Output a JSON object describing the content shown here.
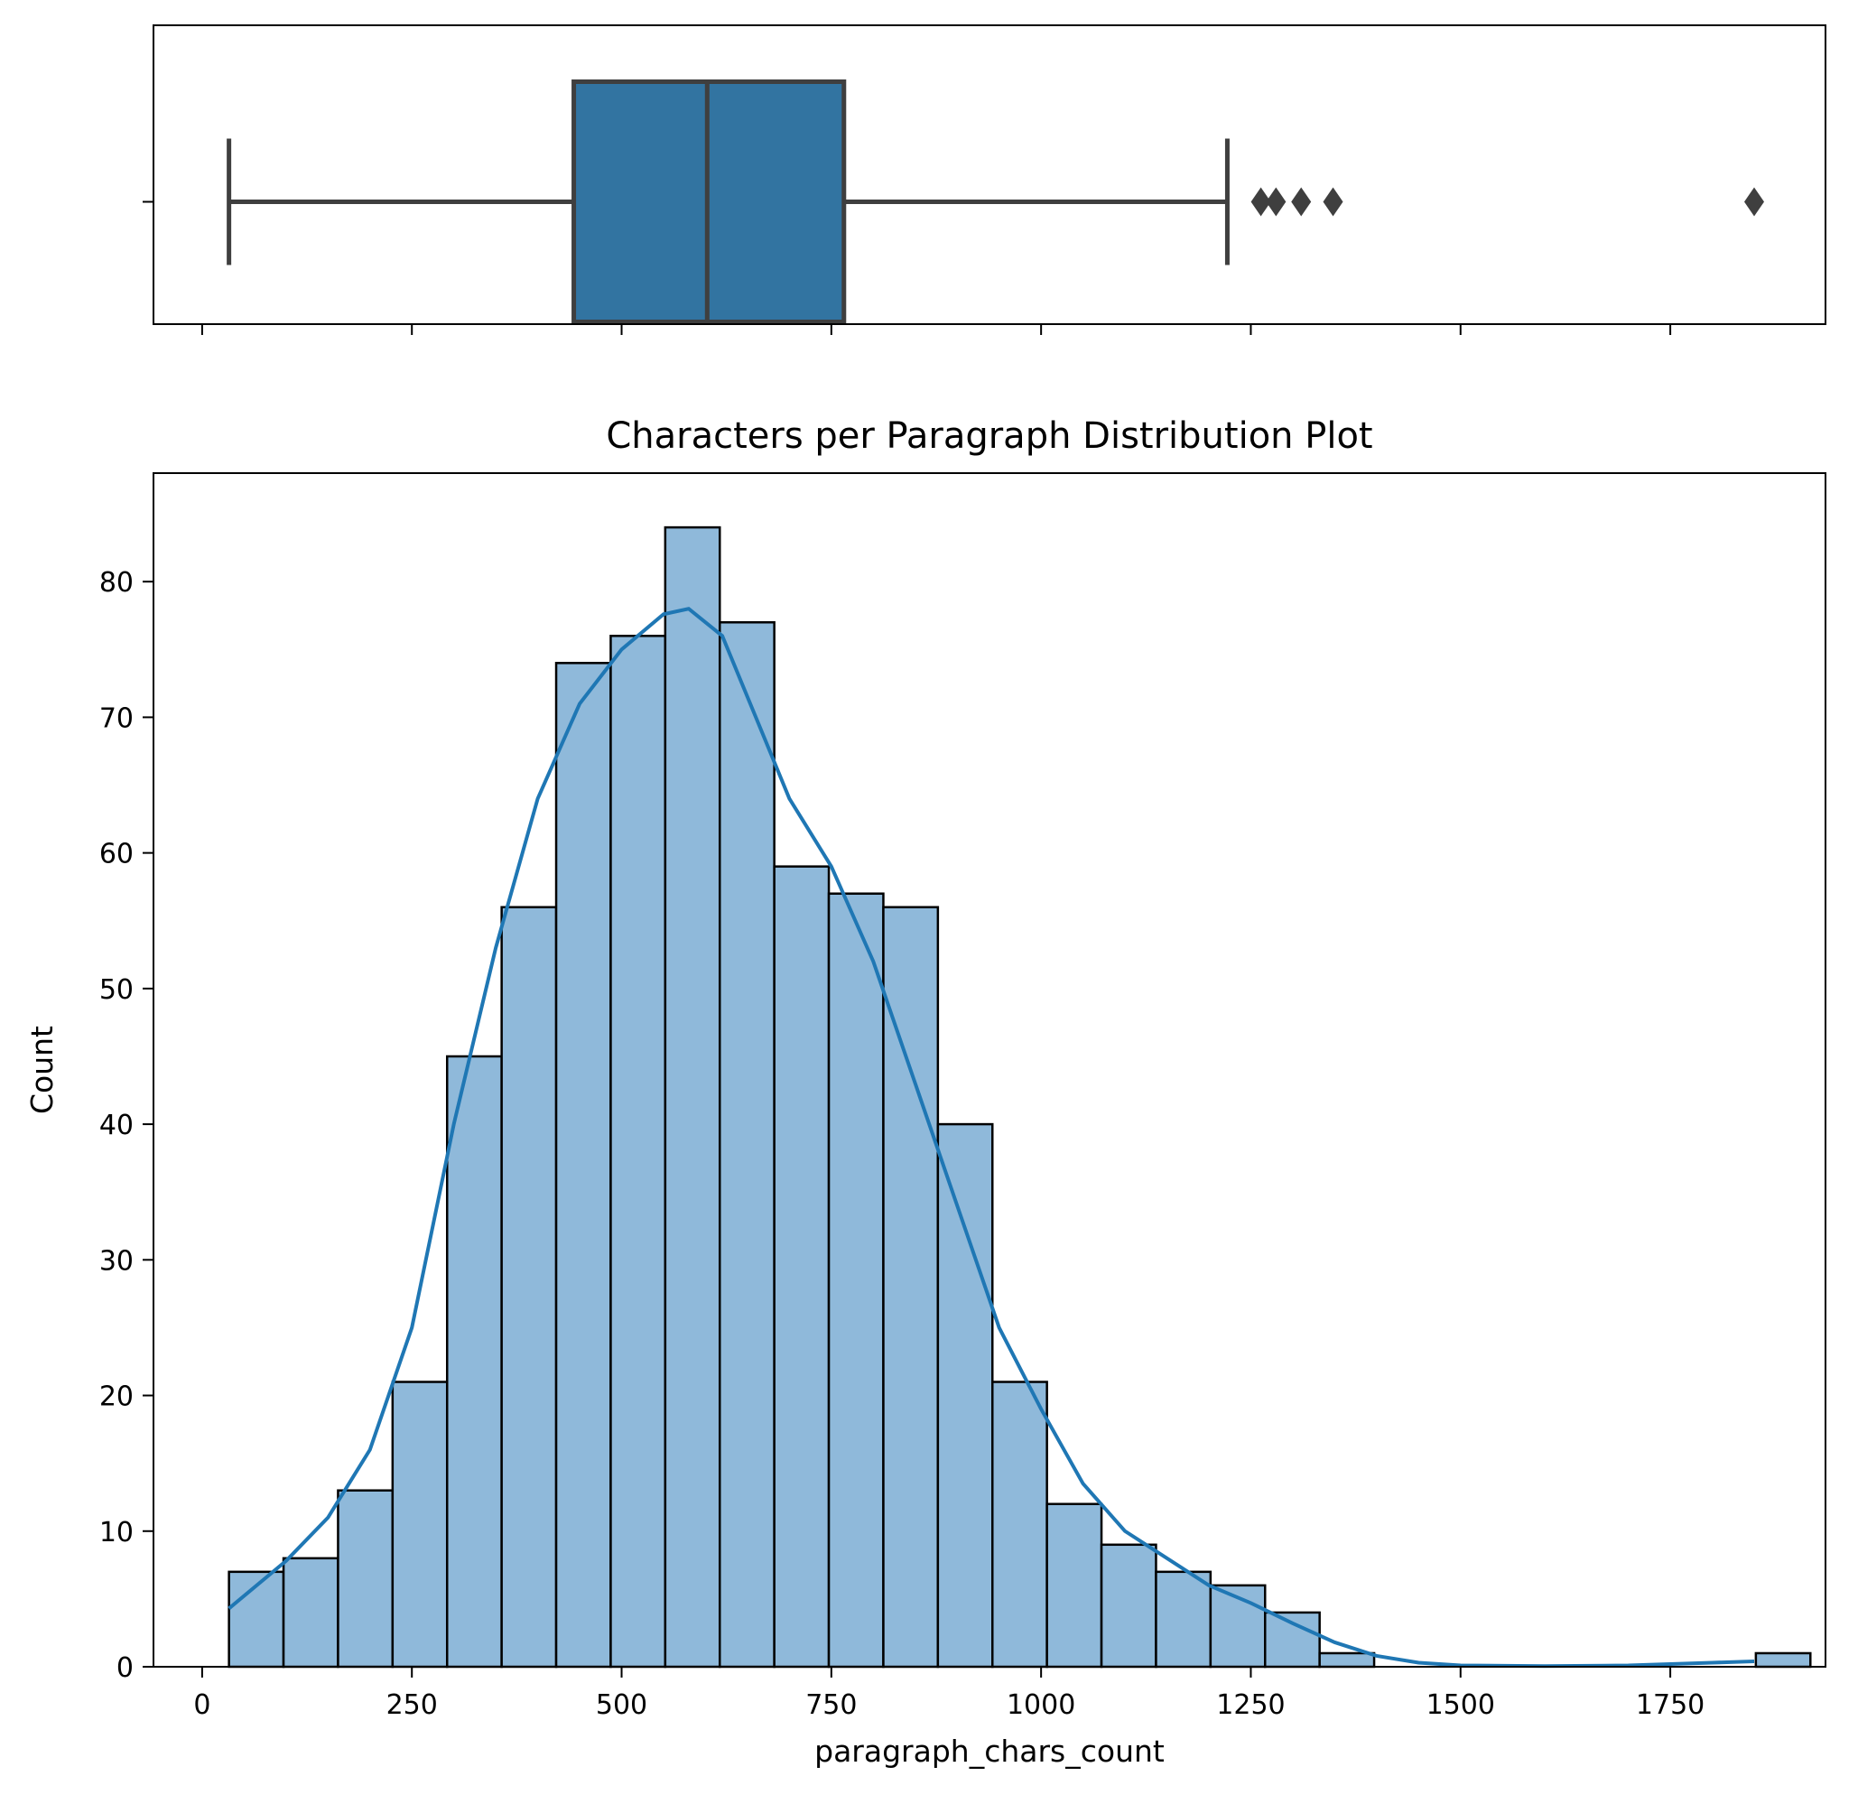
{
  "chart_data": [
    {
      "type": "box",
      "xlim": [
        -58,
        1935
      ],
      "x_ticks": [
        0,
        250,
        500,
        750,
        1000,
        1250,
        1500,
        1750
      ],
      "whisker_low": 32,
      "q1": 443,
      "median": 602,
      "q3": 765,
      "whisker_high": 1222,
      "outliers": [
        1262,
        1280,
        1310,
        1348,
        1850
      ],
      "box_color": "#3274a1",
      "edge_color": "#3f3f3f"
    },
    {
      "type": "bar",
      "title": "Characters per Paragraph Distribution Plot",
      "xlabel": "paragraph_chars_count",
      "ylabel": "Count",
      "xlim": [
        -58,
        1935
      ],
      "ylim": [
        0,
        88
      ],
      "x_ticks": [
        0,
        250,
        500,
        750,
        1000,
        1250,
        1500,
        1750
      ],
      "y_ticks": [
        0,
        10,
        20,
        30,
        40,
        50,
        60,
        70,
        80
      ],
      "bin_start": 32,
      "bin_width": 65,
      "counts": [
        7,
        8,
        13,
        21,
        45,
        56,
        74,
        76,
        84,
        77,
        59,
        57,
        56,
        40,
        21,
        12,
        9,
        7,
        6,
        4,
        1,
        0,
        0,
        0,
        0,
        0,
        0,
        0,
        1
      ],
      "bar_color": "#8fb9da",
      "edge_color": "#000000",
      "kde_color": "#1f77b4",
      "kde": [
        [
          32,
          4.3
        ],
        [
          100,
          7.8
        ],
        [
          150,
          11
        ],
        [
          200,
          16
        ],
        [
          250,
          25
        ],
        [
          300,
          40
        ],
        [
          350,
          53
        ],
        [
          400,
          64
        ],
        [
          450,
          71
        ],
        [
          500,
          75
        ],
        [
          550,
          77.6
        ],
        [
          580,
          78
        ],
        [
          620,
          76
        ],
        [
          660,
          70
        ],
        [
          700,
          64
        ],
        [
          750,
          59
        ],
        [
          800,
          52
        ],
        [
          850,
          43
        ],
        [
          900,
          34
        ],
        [
          950,
          25
        ],
        [
          1000,
          19
        ],
        [
          1050,
          13.5
        ],
        [
          1100,
          10
        ],
        [
          1150,
          8
        ],
        [
          1200,
          6
        ],
        [
          1250,
          4.7
        ],
        [
          1300,
          3.2
        ],
        [
          1350,
          1.8
        ],
        [
          1400,
          0.8
        ],
        [
          1450,
          0.3
        ],
        [
          1500,
          0.1
        ],
        [
          1600,
          0.05
        ],
        [
          1700,
          0.1
        ],
        [
          1800,
          0.3
        ],
        [
          1850,
          0.4
        ]
      ]
    }
  ]
}
